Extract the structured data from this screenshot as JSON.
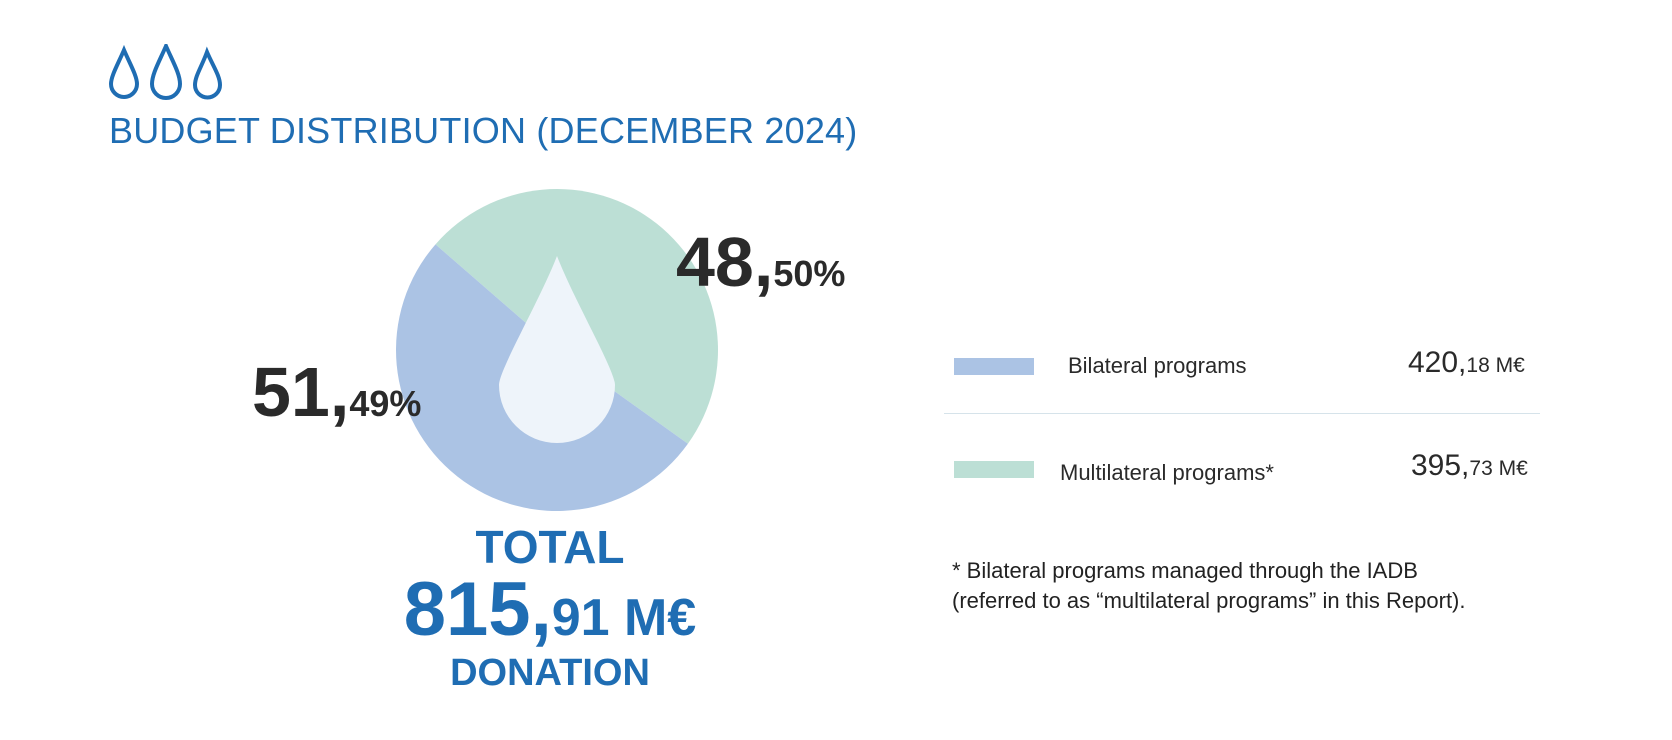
{
  "header": {
    "icon": "water-drops-icon",
    "title": "BUDGET DISTRIBUTION (DECEMBER 2024)"
  },
  "chart_data": {
    "type": "pie",
    "title": "BUDGET DISTRIBUTION (DECEMBER 2024)",
    "unit": "M€",
    "series": [
      {
        "name": "Bilateral programs",
        "value": 420.18,
        "value_int": "420,",
        "value_dec": "18 M€",
        "percent": 51.49,
        "pct_int": "51,",
        "pct_dec": "49%",
        "color": "#abc3e4"
      },
      {
        "name": "Multilateral programs*",
        "value": 395.73,
        "value_int": "395,",
        "value_dec": "73 M€",
        "percent": 48.5,
        "pct_int": "48,",
        "pct_dec": "50%",
        "color": "#bcdfd5"
      }
    ],
    "legend": "right",
    "center_icon": "water-drop-icon"
  },
  "total": {
    "label": "TOTAL",
    "value": 815.91,
    "value_int": "815,",
    "value_dec": "91 M€",
    "sublabel": "DONATION"
  },
  "footnote": {
    "line1": "* Bilateral programs managed through the IADB",
    "line2": "(referred to as “multilateral programs” in this Report)."
  },
  "colors": {
    "accent": "#1f6db3",
    "text": "#2a2a2a",
    "drop": "#eef4fa"
  }
}
